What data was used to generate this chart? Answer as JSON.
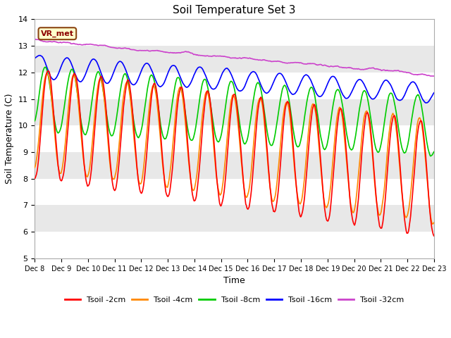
{
  "title": "Soil Temperature Set 3",
  "xlabel": "Time",
  "ylabel": "Soil Temperature (C)",
  "ylim": [
    5.0,
    14.0
  ],
  "yticks": [
    5.0,
    6.0,
    7.0,
    8.0,
    9.0,
    10.0,
    11.0,
    12.0,
    13.0,
    14.0
  ],
  "xtick_labels": [
    "Dec 8",
    "Dec 9",
    "Dec 10",
    "Dec 11",
    "Dec 12",
    "Dec 13",
    "Dec 14",
    "Dec 15",
    "Dec 16",
    "Dec 17",
    "Dec 18",
    "Dec 19",
    "Dec 20",
    "Dec 21",
    "Dec 22",
    "Dec 23"
  ],
  "band_colors": [
    "#ffffff",
    "#e8e8e8"
  ],
  "series_colors": {
    "Tsoil -2cm": "#ff0000",
    "Tsoil -4cm": "#ff8800",
    "Tsoil -8cm": "#00cc00",
    "Tsoil -16cm": "#0000ff",
    "Tsoil -32cm": "#cc44cc"
  },
  "legend_label": "VR_met",
  "n_points": 720
}
